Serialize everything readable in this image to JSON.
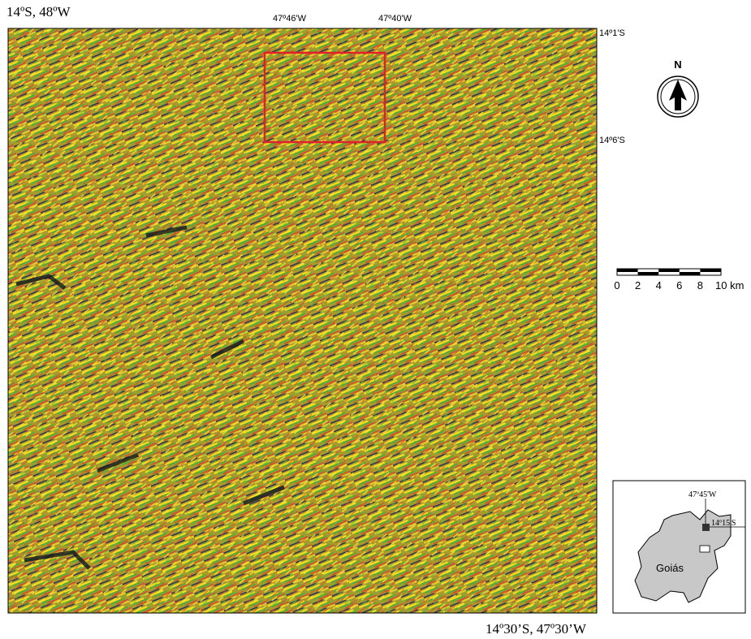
{
  "map": {
    "corner_top_left": "14ºS, 48ºW",
    "corner_bottom_right": "14º30’S, 47º30’W",
    "top_labels": [
      "47º46'W",
      "47º40'W"
    ],
    "right_labels": [
      "14º1'S",
      "14º6'S"
    ],
    "north": "N",
    "scale_labels": [
      "0",
      "2",
      "4",
      "6",
      "8",
      "10 km"
    ],
    "inset": {
      "longitude": "47º45'W",
      "latitude": "14º15'S",
      "state": "Goiás"
    }
  }
}
